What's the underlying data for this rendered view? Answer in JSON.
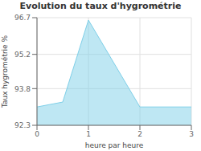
{
  "chart_data": {
    "type": "area",
    "title": "Evolution du taux d'hygrométrie",
    "xlabel": "heure par heure",
    "ylabel": "Taux hygrométrie %",
    "x": [
      0,
      0.5,
      1,
      2,
      3
    ],
    "values": [
      93.05,
      93.25,
      96.6,
      93.05,
      93.05
    ],
    "xlim": [
      0,
      3
    ],
    "ylim": [
      92.3,
      96.7
    ],
    "xticks": [
      0,
      1,
      2,
      3
    ],
    "yticks": [
      92.3,
      93.8,
      95.2,
      96.7
    ],
    "grid": true,
    "color": "#7ecfe8"
  }
}
